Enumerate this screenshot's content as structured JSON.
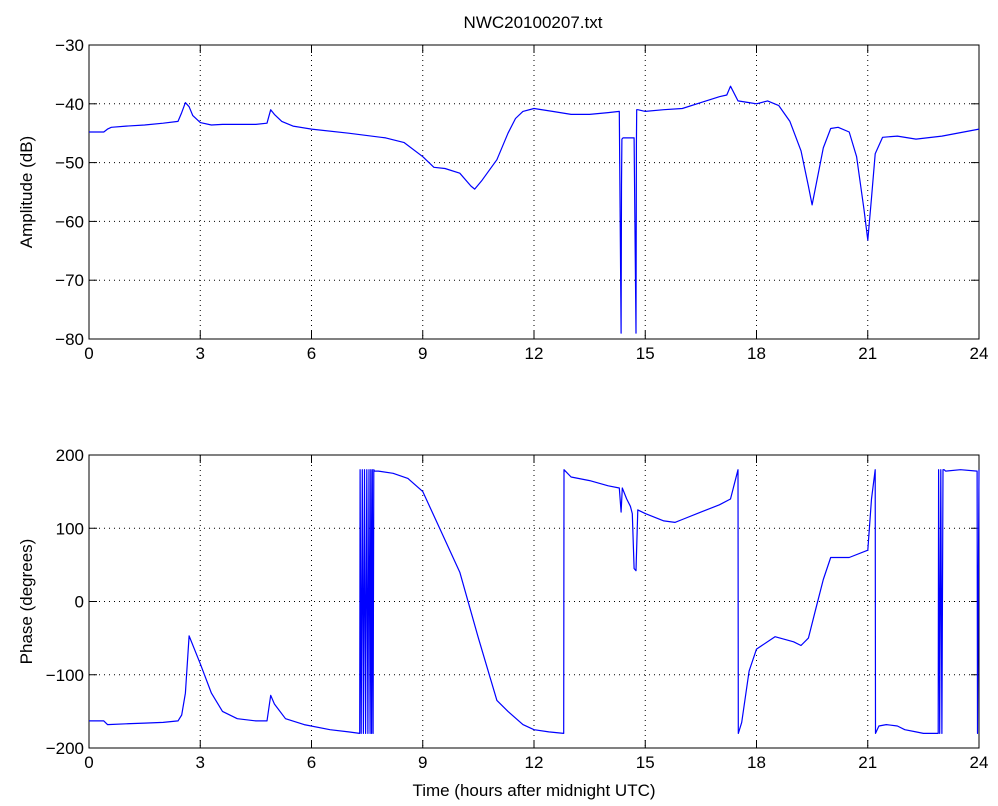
{
  "figure_title": "NWC20100207.txt",
  "chart_data": [
    {
      "type": "line",
      "title": "NWC20100207.txt",
      "xlabel": "",
      "ylabel": "Amplitude (dB)",
      "xlim": [
        0,
        24
      ],
      "ylim": [
        -80,
        -30
      ],
      "xticks": [
        "0",
        "3",
        "6",
        "9",
        "12",
        "15",
        "18",
        "21",
        "24"
      ],
      "yticks": [
        "−80",
        "−70",
        "−60",
        "−50",
        "−40",
        "−30"
      ],
      "grid": true,
      "color": "#0000ff",
      "x": [
        0,
        0.4,
        0.5,
        0.6,
        1.0,
        1.5,
        2.0,
        2.4,
        2.5,
        2.6,
        2.7,
        2.8,
        3.0,
        3.3,
        3.6,
        4.0,
        4.5,
        4.8,
        4.9,
        5.0,
        5.2,
        5.5,
        6.0,
        7.0,
        8.0,
        8.5,
        9.0,
        9.3,
        9.6,
        10.0,
        10.3,
        10.4,
        10.6,
        11.0,
        11.3,
        11.5,
        11.7,
        12.0,
        12.5,
        13.0,
        13.5,
        14.0,
        14.3,
        14.35,
        14.36,
        14.37,
        14.4,
        14.5,
        14.7,
        14.75,
        14.76,
        14.77,
        14.8,
        15.0,
        15.5,
        16.0,
        16.5,
        17.0,
        17.2,
        17.3,
        17.5,
        17.8,
        18.0,
        18.3,
        18.6,
        18.9,
        19.2,
        19.4,
        19.5,
        19.6,
        19.8,
        20.0,
        20.2,
        20.5,
        20.7,
        20.9,
        21.0,
        21.1,
        21.2,
        21.4,
        21.8,
        22.3,
        23.0,
        24.0
      ],
      "values": [
        -44.8,
        -44.8,
        -44.3,
        -44.0,
        -43.8,
        -43.6,
        -43.3,
        -43.0,
        -41.5,
        -39.8,
        -40.5,
        -42.0,
        -43.2,
        -43.6,
        -43.5,
        -43.5,
        -43.5,
        -43.3,
        -41.0,
        -41.8,
        -43.0,
        -43.8,
        -44.3,
        -45.0,
        -45.8,
        -46.6,
        -49.0,
        -50.8,
        -51.0,
        -51.8,
        -54.0,
        -54.5,
        -53.0,
        -49.5,
        -45.0,
        -42.5,
        -41.3,
        -40.8,
        -41.3,
        -41.8,
        -41.8,
        -41.5,
        -41.3,
        -79.0,
        -54.0,
        -46.0,
        -45.8,
        -45.8,
        -45.8,
        -79.0,
        -47.0,
        -41.0,
        -41.0,
        -41.3,
        -41.0,
        -40.8,
        -39.8,
        -38.8,
        -38.5,
        -37.0,
        -39.5,
        -39.8,
        -40.0,
        -39.5,
        -40.3,
        -43.0,
        -48.0,
        -54.0,
        -57.2,
        -54.0,
        -47.5,
        -44.2,
        -44.0,
        -44.8,
        -49.0,
        -58.0,
        -63.2,
        -56.0,
        -48.5,
        -45.7,
        -45.5,
        -46.0,
        -45.5,
        -44.3
      ]
    },
    {
      "type": "line",
      "title": "",
      "xlabel": "Time (hours after midnight UTC)",
      "ylabel": "Phase (degrees)",
      "xlim": [
        0,
        24
      ],
      "ylim": [
        -200,
        200
      ],
      "xticks": [
        "0",
        "3",
        "6",
        "9",
        "12",
        "15",
        "18",
        "21",
        "24"
      ],
      "yticks": [
        "−200",
        "−100",
        "0",
        "100",
        "200"
      ],
      "grid": true,
      "color": "#0000ff",
      "x": [
        0,
        0.4,
        0.5,
        1.0,
        1.5,
        2.0,
        2.4,
        2.5,
        2.6,
        2.7,
        3.0,
        3.3,
        3.6,
        4.0,
        4.5,
        4.8,
        4.9,
        5.0,
        5.3,
        5.8,
        6.5,
        7.0,
        7.3,
        7.31,
        7.34,
        7.37,
        7.4,
        7.43,
        7.46,
        7.49,
        7.52,
        7.55,
        7.58,
        7.6,
        7.62,
        7.64,
        7.66,
        7.68,
        7.7,
        7.8,
        8.2,
        8.6,
        9.0,
        9.5,
        10.0,
        10.5,
        11.0,
        11.3,
        11.7,
        12.0,
        12.4,
        12.8,
        12.81,
        13.0,
        13.5,
        14.0,
        14.3,
        14.35,
        14.38,
        14.5,
        14.6,
        14.65,
        14.7,
        14.75,
        14.8,
        15.0,
        15.5,
        15.8,
        16.0,
        16.5,
        17.0,
        17.3,
        17.5,
        17.51,
        17.6,
        17.8,
        18.0,
        18.5,
        19.0,
        19.2,
        19.4,
        19.6,
        19.8,
        20.0,
        20.5,
        21.0,
        21.1,
        21.2,
        21.21,
        21.3,
        21.5,
        21.8,
        22.0,
        22.3,
        22.5,
        22.9,
        22.91,
        22.94,
        22.97,
        23.0,
        23.03,
        23.06,
        23.1,
        23.5,
        23.95,
        23.96,
        24.0
      ],
      "values": [
        -163,
        -163,
        -168,
        -167,
        -166,
        -165,
        -163,
        -155,
        -125,
        -47,
        -85,
        -125,
        -150,
        -160,
        -163,
        -163,
        -128,
        -140,
        -160,
        -168,
        -175,
        -178,
        -180,
        180,
        -180,
        180,
        -180,
        180,
        -180,
        180,
        -180,
        180,
        -180,
        180,
        -180,
        180,
        -180,
        180,
        178,
        178,
        175,
        168,
        150,
        95,
        40,
        -50,
        -135,
        -150,
        -168,
        -175,
        -178,
        -180,
        180,
        170,
        165,
        158,
        155,
        122,
        155,
        140,
        130,
        120,
        45,
        42,
        125,
        120,
        110,
        108,
        112,
        122,
        132,
        140,
        180,
        -180,
        -165,
        -95,
        -65,
        -48,
        -55,
        -60,
        -50,
        -10,
        30,
        60,
        60,
        70,
        140,
        180,
        -180,
        -170,
        -168,
        -170,
        -175,
        -178,
        -180,
        -180,
        180,
        -180,
        180,
        -180,
        180,
        180,
        178,
        180,
        178,
        -180,
        180
      ]
    }
  ]
}
